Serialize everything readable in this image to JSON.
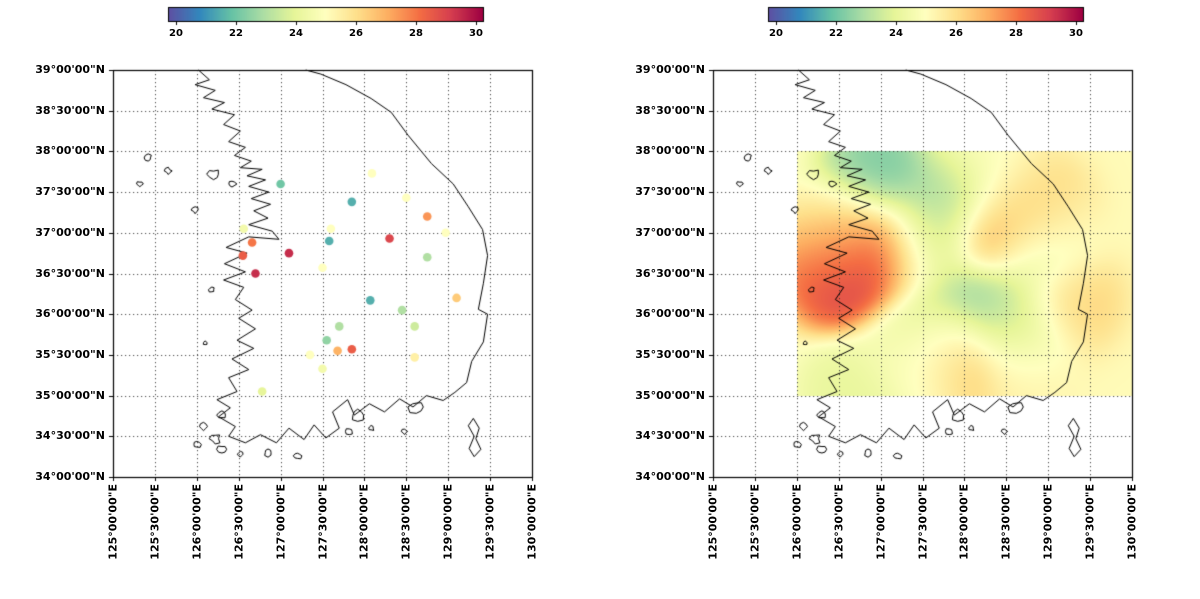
{
  "colormap": {
    "name": "Spectral_r",
    "stops": [
      {
        "t": 0.0,
        "color": "#5e4fa2"
      },
      {
        "t": 0.1,
        "color": "#3288bd"
      },
      {
        "t": 0.2,
        "color": "#66c2a5"
      },
      {
        "t": 0.3,
        "color": "#abdda4"
      },
      {
        "t": 0.4,
        "color": "#e6f598"
      },
      {
        "t": 0.5,
        "color": "#ffffbf"
      },
      {
        "t": 0.6,
        "color": "#fee08b"
      },
      {
        "t": 0.7,
        "color": "#fdae61"
      },
      {
        "t": 0.8,
        "color": "#f46d43"
      },
      {
        "t": 0.9,
        "color": "#d53e4f"
      },
      {
        "t": 1.0,
        "color": "#9e0142"
      }
    ]
  },
  "colorbar": {
    "range": [
      19.75,
      30.25
    ],
    "tick_values": [
      20,
      22,
      24,
      26,
      28,
      30
    ],
    "tick_labels": [
      "20",
      "22",
      "24",
      "26",
      "28",
      "30"
    ]
  },
  "axes": {
    "lon_range": [
      125,
      130
    ],
    "lat_range": [
      34,
      39
    ],
    "grid_step_deg": 0.5,
    "grid_style": "dotted",
    "x_tick_labels": [
      "125°00'00\"E",
      "125°30'00\"E",
      "126°00'00\"E",
      "126°30'00\"E",
      "127°00'00\"E",
      "127°30'00\"E",
      "128°00'00\"E",
      "128°30'00\"E",
      "129°00'00\"E",
      "129°30'00\"E",
      "130°00'00\"E"
    ],
    "y_tick_labels": [
      "39°00'00\"N",
      "38°30'00\"N",
      "38°00'00\"N",
      "37°30'00\"N",
      "37°00'00\"N",
      "36°30'00\"N",
      "36°00'00\"N",
      "35°30'00\"N",
      "35°00'00\"N",
      "34°30'00\"N",
      "34°00'00\"N"
    ]
  },
  "chart_data": [
    {
      "type": "scatter",
      "title": "",
      "xlabel": "",
      "ylabel": "",
      "xlim": [
        125,
        130
      ],
      "ylim": [
        34,
        39
      ],
      "color_value_range": [
        20,
        30
      ],
      "points": [
        {
          "lon": 127.0,
          "lat": 37.6,
          "value": 22.0
        },
        {
          "lon": 128.09,
          "lat": 37.73,
          "value": 25.0
        },
        {
          "lon": 127.85,
          "lat": 37.38,
          "value": 21.5
        },
        {
          "lon": 128.5,
          "lat": 37.43,
          "value": 25.0
        },
        {
          "lon": 128.75,
          "lat": 37.2,
          "value": 27.5
        },
        {
          "lon": 126.56,
          "lat": 37.05,
          "value": 24.5
        },
        {
          "lon": 126.66,
          "lat": 36.88,
          "value": 28.0
        },
        {
          "lon": 127.6,
          "lat": 37.05,
          "value": 25.0
        },
        {
          "lon": 127.58,
          "lat": 36.9,
          "value": 21.5
        },
        {
          "lon": 128.3,
          "lat": 36.93,
          "value": 29.0
        },
        {
          "lon": 128.97,
          "lat": 37.0,
          "value": 25.0
        },
        {
          "lon": 126.55,
          "lat": 36.72,
          "value": 28.5
        },
        {
          "lon": 126.7,
          "lat": 36.5,
          "value": 29.5
        },
        {
          "lon": 127.1,
          "lat": 36.75,
          "value": 29.5
        },
        {
          "lon": 127.5,
          "lat": 36.57,
          "value": 25.0
        },
        {
          "lon": 128.75,
          "lat": 36.7,
          "value": 23.0
        },
        {
          "lon": 128.07,
          "lat": 36.17,
          "value": 21.5
        },
        {
          "lon": 129.1,
          "lat": 36.2,
          "value": 26.5
        },
        {
          "lon": 128.45,
          "lat": 36.05,
          "value": 23.0
        },
        {
          "lon": 127.7,
          "lat": 35.85,
          "value": 23.0
        },
        {
          "lon": 128.6,
          "lat": 35.85,
          "value": 23.5
        },
        {
          "lon": 127.55,
          "lat": 35.68,
          "value": 22.5
        },
        {
          "lon": 127.85,
          "lat": 35.57,
          "value": 28.5
        },
        {
          "lon": 127.68,
          "lat": 35.55,
          "value": 27.0
        },
        {
          "lon": 127.35,
          "lat": 35.5,
          "value": 25.0
        },
        {
          "lon": 128.6,
          "lat": 35.47,
          "value": 25.5
        },
        {
          "lon": 127.5,
          "lat": 35.33,
          "value": 24.5
        },
        {
          "lon": 126.78,
          "lat": 35.05,
          "value": 24.0
        }
      ]
    },
    {
      "type": "heatmap",
      "title": "",
      "xlim": [
        125,
        130
      ],
      "ylim": [
        34,
        39
      ],
      "extent": {
        "lon": [
          126,
          130
        ],
        "lat": [
          35,
          38
        ]
      },
      "points_source": "chart_data[0].points",
      "smoothing_sigma_deg": 0.33
    }
  ],
  "basemap": {
    "mainland": [
      [
        126.02,
        39.0
      ],
      [
        126.15,
        38.88
      ],
      [
        125.98,
        38.82
      ],
      [
        126.22,
        38.75
      ],
      [
        126.08,
        38.66
      ],
      [
        126.33,
        38.6
      ],
      [
        126.18,
        38.52
      ],
      [
        126.45,
        38.45
      ],
      [
        126.32,
        38.33
      ],
      [
        126.52,
        38.25
      ],
      [
        126.38,
        38.12
      ],
      [
        126.58,
        38.05
      ],
      [
        126.45,
        37.95
      ],
      [
        126.65,
        37.88
      ],
      [
        126.52,
        37.8
      ],
      [
        126.78,
        37.78
      ],
      [
        126.6,
        37.7
      ],
      [
        126.82,
        37.65
      ],
      [
        126.62,
        37.57
      ],
      [
        126.86,
        37.5
      ],
      [
        126.65,
        37.42
      ],
      [
        126.88,
        37.35
      ],
      [
        126.68,
        37.27
      ],
      [
        126.85,
        37.18
      ],
      [
        126.62,
        37.1
      ],
      [
        126.9,
        37.02
      ],
      [
        126.98,
        36.92
      ],
      [
        126.62,
        36.95
      ],
      [
        126.35,
        36.82
      ],
      [
        126.6,
        36.75
      ],
      [
        126.33,
        36.62
      ],
      [
        126.58,
        36.52
      ],
      [
        126.32,
        36.42
      ],
      [
        126.56,
        36.33
      ],
      [
        126.46,
        36.18
      ],
      [
        126.66,
        36.05
      ],
      [
        126.5,
        35.95
      ],
      [
        126.7,
        35.82
      ],
      [
        126.48,
        35.68
      ],
      [
        126.68,
        35.58
      ],
      [
        126.42,
        35.45
      ],
      [
        126.62,
        35.32
      ],
      [
        126.38,
        35.22
      ],
      [
        126.48,
        35.05
      ],
      [
        126.24,
        34.95
      ],
      [
        126.4,
        34.85
      ],
      [
        126.26,
        34.74
      ],
      [
        126.46,
        34.62
      ],
      [
        126.38,
        34.5
      ],
      [
        126.58,
        34.42
      ],
      [
        126.76,
        34.52
      ],
      [
        126.95,
        34.42
      ],
      [
        127.1,
        34.6
      ],
      [
        127.28,
        34.46
      ],
      [
        127.4,
        34.64
      ],
      [
        127.54,
        34.48
      ],
      [
        127.7,
        34.6
      ],
      [
        127.62,
        34.8
      ],
      [
        127.8,
        34.95
      ],
      [
        127.88,
        34.76
      ],
      [
        128.06,
        34.9
      ],
      [
        128.24,
        34.8
      ],
      [
        128.42,
        34.96
      ],
      [
        128.58,
        34.86
      ],
      [
        128.74,
        35.0
      ],
      [
        128.94,
        34.94
      ],
      [
        129.08,
        35.04
      ],
      [
        129.22,
        35.16
      ],
      [
        129.28,
        35.42
      ],
      [
        129.42,
        35.66
      ],
      [
        129.47,
        36.0
      ],
      [
        129.36,
        36.06
      ],
      [
        129.42,
        36.38
      ],
      [
        129.47,
        36.72
      ],
      [
        129.41,
        37.04
      ],
      [
        129.24,
        37.32
      ],
      [
        129.06,
        37.6
      ],
      [
        128.8,
        37.85
      ],
      [
        128.52,
        38.2
      ],
      [
        128.32,
        38.48
      ],
      [
        128.08,
        38.65
      ],
      [
        127.78,
        38.82
      ],
      [
        127.48,
        38.95
      ],
      [
        127.3,
        39.0
      ]
    ],
    "islands_round": [
      [
        125.42,
        37.92,
        0.045
      ],
      [
        125.66,
        37.76,
        0.04
      ],
      [
        125.32,
        37.6,
        0.035
      ],
      [
        126.2,
        37.72,
        0.065
      ],
      [
        126.42,
        37.6,
        0.05
      ],
      [
        125.98,
        37.28,
        0.04
      ],
      [
        126.18,
        36.3,
        0.035
      ],
      [
        126.1,
        35.65,
        0.03
      ],
      [
        126.3,
        34.76,
        0.05
      ],
      [
        126.08,
        34.62,
        0.045
      ],
      [
        126.0,
        34.4,
        0.045
      ],
      [
        126.3,
        34.34,
        0.05
      ],
      [
        126.52,
        34.28,
        0.04
      ],
      [
        126.85,
        34.3,
        0.05
      ],
      [
        127.2,
        34.26,
        0.05
      ],
      [
        127.82,
        34.56,
        0.04
      ],
      [
        128.08,
        34.6,
        0.035
      ],
      [
        128.48,
        34.56,
        0.035
      ],
      [
        126.22,
        34.47,
        0.065
      ],
      [
        127.92,
        34.76,
        0.075
      ],
      [
        128.62,
        34.86,
        0.085
      ]
    ],
    "islands_poly": [
      [
        [
          129.3,
          34.72
        ],
        [
          129.37,
          34.6
        ],
        [
          129.33,
          34.47
        ],
        [
          129.39,
          34.34
        ],
        [
          129.31,
          34.25
        ],
        [
          129.25,
          34.35
        ],
        [
          129.31,
          34.5
        ],
        [
          129.24,
          34.63
        ],
        [
          129.3,
          34.72
        ]
      ]
    ]
  }
}
